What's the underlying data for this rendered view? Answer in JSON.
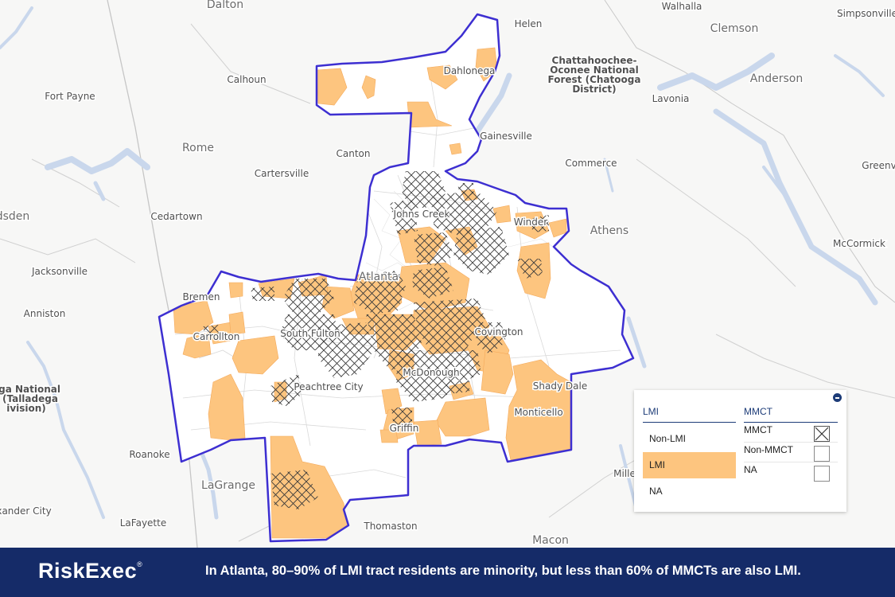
{
  "map": {
    "places": [
      {
        "name": "Dalton",
        "style": "big"
      },
      {
        "name": "Helen",
        "style": "normal"
      },
      {
        "name": "Walhalla",
        "style": "normal"
      },
      {
        "name": "Clemson",
        "style": "big"
      },
      {
        "name": "Simpsonville",
        "style": "normal"
      },
      {
        "name": "Anderson",
        "style": "big"
      },
      {
        "name": "Chattahoochee-\nOconee National\nForest (Chatooga\nDistrict)",
        "style": "forest"
      },
      {
        "name": "Lavonia",
        "style": "normal"
      },
      {
        "name": "Calhoun",
        "style": "normal"
      },
      {
        "name": "Fort Payne",
        "style": "normal"
      },
      {
        "name": "Dahlonega",
        "style": "normal"
      },
      {
        "name": "Gainesville",
        "style": "normal"
      },
      {
        "name": "Rome",
        "style": "big"
      },
      {
        "name": "Canton",
        "style": "normal"
      },
      {
        "name": "Commerce",
        "style": "normal"
      },
      {
        "name": "Greenv",
        "style": "normal"
      },
      {
        "name": "Cartersville",
        "style": "normal"
      },
      {
        "name": "Cedartown",
        "style": "normal"
      },
      {
        "name": "Johns Creek",
        "style": "normal"
      },
      {
        "name": "Winder",
        "style": "normal"
      },
      {
        "name": "Athens",
        "style": "big"
      },
      {
        "name": "dsden",
        "style": "big"
      },
      {
        "name": "McCormick",
        "style": "normal"
      },
      {
        "name": "Jacksonville",
        "style": "normal"
      },
      {
        "name": "Atlanta",
        "style": "big"
      },
      {
        "name": "Bremen",
        "style": "normal"
      },
      {
        "name": "Anniston",
        "style": "normal"
      },
      {
        "name": "South Fulton",
        "style": "normal"
      },
      {
        "name": "Carrollton",
        "style": "normal"
      },
      {
        "name": "Covington",
        "style": "normal"
      },
      {
        "name": "McDonough",
        "style": "normal"
      },
      {
        "name": "ega National\nt (Talladega\nivision)",
        "style": "forest"
      },
      {
        "name": "Peachtree City",
        "style": "normal"
      },
      {
        "name": "Shady Dale",
        "style": "normal"
      },
      {
        "name": "Monticello",
        "style": "normal"
      },
      {
        "name": "Griffin",
        "style": "normal"
      },
      {
        "name": "Roanoke",
        "style": "normal"
      },
      {
        "name": "LaGrange",
        "style": "big"
      },
      {
        "name": "Mille",
        "style": "normal"
      },
      {
        "name": "xander City",
        "style": "normal"
      },
      {
        "name": "LaFayette",
        "style": "normal"
      },
      {
        "name": "Thomaston",
        "style": "normal"
      },
      {
        "name": "Macon",
        "style": "big"
      }
    ],
    "colors": {
      "lmi": "#fdc57f",
      "boundary": "#3d2fd1",
      "water": "#c9d7ec",
      "hatch": "#3a3a3a"
    }
  },
  "legend": {
    "lmi_header": "LMI",
    "lmi_items": [
      "Non-LMI",
      "LMI",
      "NA"
    ],
    "mmct_header": "MMCT",
    "mmct_items": [
      "MMCT",
      "Non-MMCT",
      "NA"
    ],
    "collapse_icon": "minus-circle-icon"
  },
  "footer": {
    "brand": "RiskExec",
    "brand_mark": "®",
    "caption": "In Atlanta, 80–90% of LMI tract residents are minority, but less than 60% of MMCTs are also LMI."
  }
}
